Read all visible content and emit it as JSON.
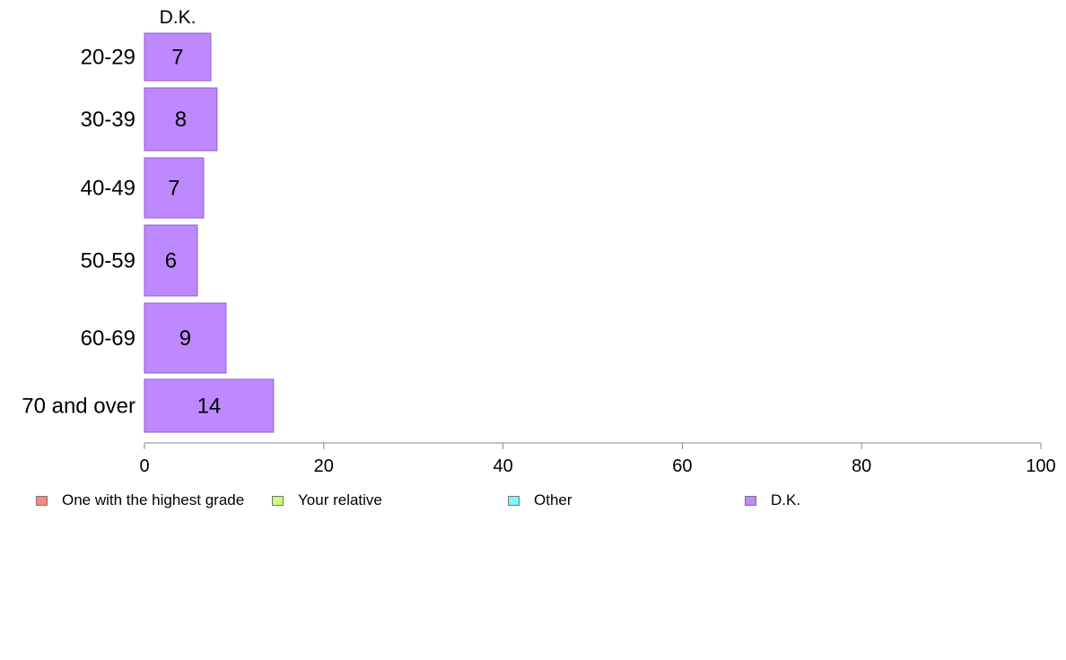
{
  "chart_data": {
    "type": "bar",
    "orientation": "horizontal",
    "stacked": true,
    "column_label": "D.K.",
    "categories": [
      "20-29",
      "30-39",
      "40-49",
      "50-59",
      "60-69",
      "70 and over"
    ],
    "series": [
      {
        "name": "One with the highest grade",
        "color": "#f8877f",
        "values": [
          0,
          0,
          0,
          0,
          0,
          0
        ]
      },
      {
        "name": "Your relative",
        "color": "#c6ff79",
        "values": [
          0,
          0,
          0,
          0,
          0,
          0
        ]
      },
      {
        "name": "Other",
        "color": "#7ff8f3",
        "values": [
          0,
          0,
          0,
          0,
          0,
          0
        ]
      },
      {
        "name": "D.K.",
        "color": "#be89ff",
        "values": [
          7.4,
          8.1,
          6.6,
          5.9,
          9.1,
          14.4
        ]
      }
    ],
    "data_labels": [
      "7",
      "8",
      "7",
      "6",
      "9",
      "14"
    ],
    "x_ticks": [
      "0",
      "20",
      "40",
      "60",
      "80",
      "100"
    ],
    "xlim": [
      0,
      100
    ],
    "grid": false,
    "legend_position": "bottom"
  }
}
